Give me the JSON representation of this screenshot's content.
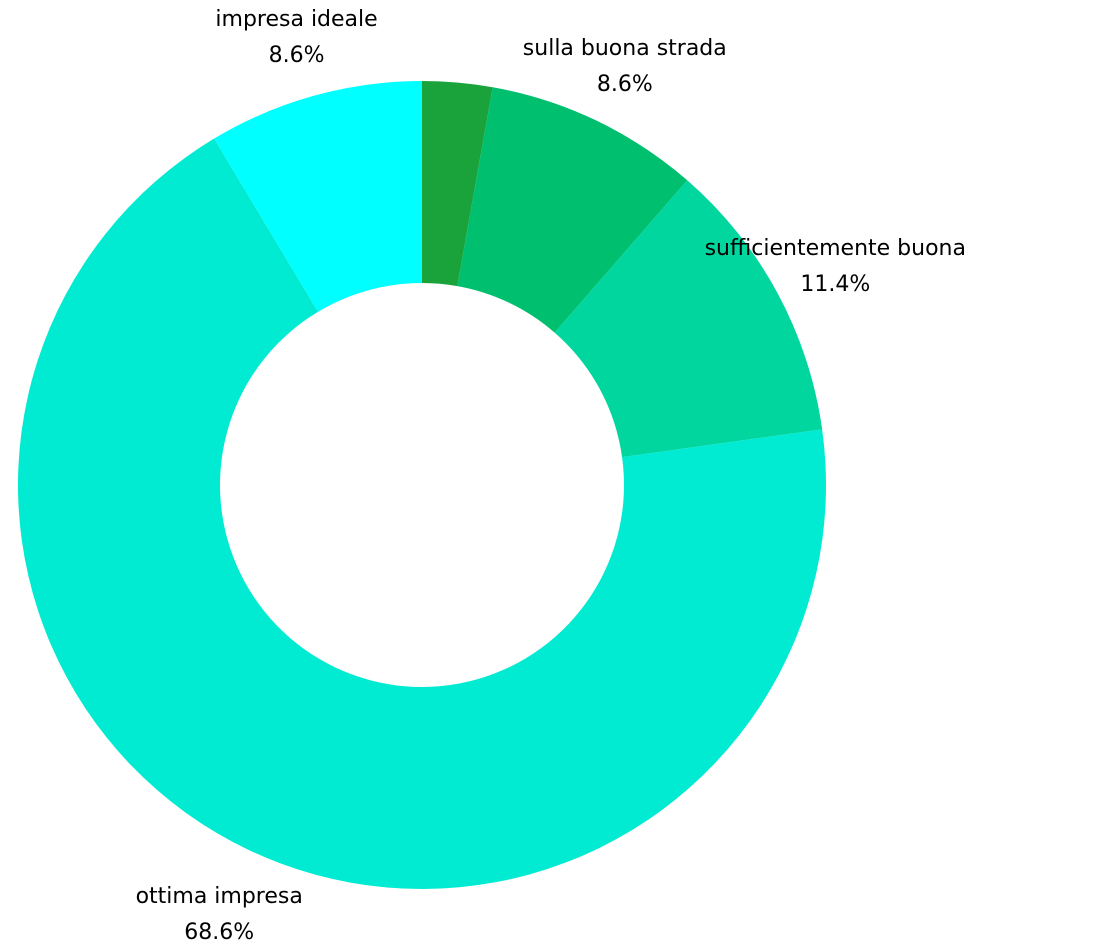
{
  "chart_data": {
    "type": "pie",
    "variant": "donut",
    "title": "",
    "start_angle_deg": 0,
    "direction": "clockwise",
    "slices": [
      {
        "label": "",
        "value": 2.8,
        "percent_text": "",
        "color": "#1aa33a"
      },
      {
        "label": "sulla buona strada",
        "value": 8.6,
        "percent_text": "8.6%",
        "color": "#00bf6f"
      },
      {
        "label": "sufficientemente buona",
        "value": 11.4,
        "percent_text": "11.4%",
        "color": "#00d69e"
      },
      {
        "label": "ottima impresa",
        "value": 68.6,
        "percent_text": "68.6%",
        "color": "#00ebd2"
      },
      {
        "label": "impresa ideale",
        "value": 8.6,
        "percent_text": "8.6%",
        "color": "#00ffff"
      }
    ],
    "legend": "none",
    "labels_outside": true
  }
}
